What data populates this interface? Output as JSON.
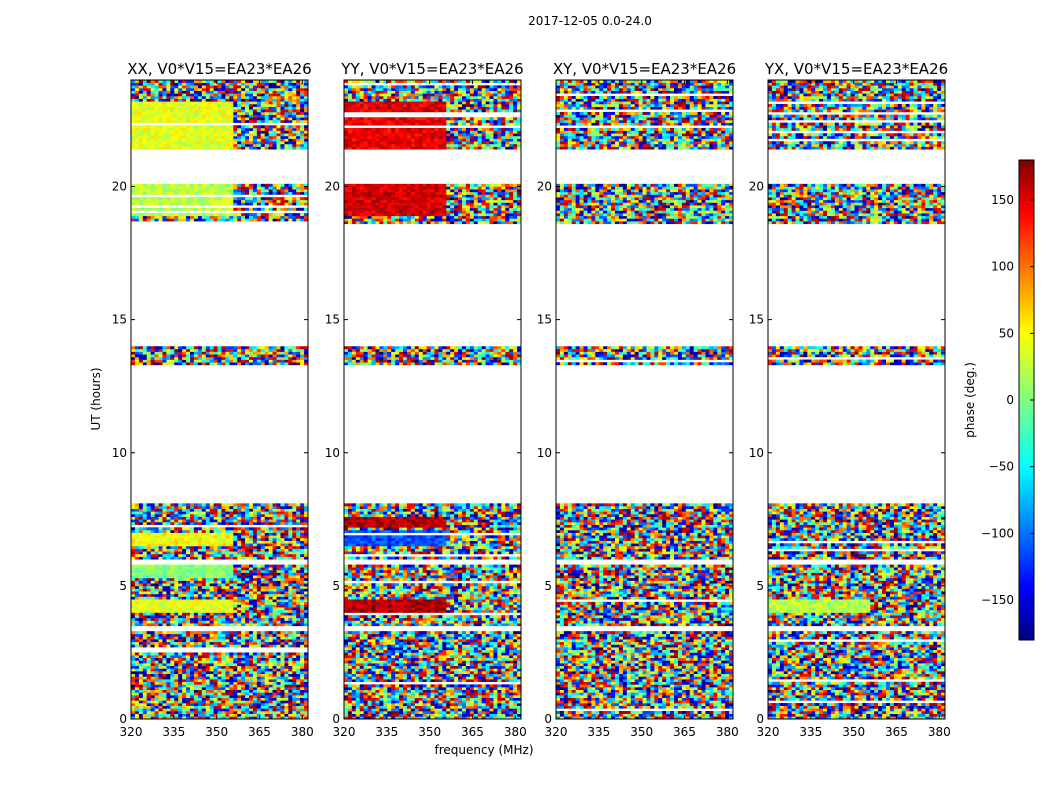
{
  "chart_data": {
    "type": "heatmap",
    "suptitle": "2017-12-05 0.0-24.0",
    "xlabel": "frequency (MHz)",
    "ylabel": "UT (hours)",
    "colorbar_label": "phase (deg.)",
    "xlim": [
      320,
      382
    ],
    "ylim": [
      0,
      24
    ],
    "xticks": [
      "320",
      "335",
      "350",
      "365",
      "380"
    ],
    "yticks": [
      "0",
      "5",
      "10",
      "15",
      "20"
    ],
    "colorbar_range": [
      -180,
      180
    ],
    "colorbar_ticks": [
      "150",
      "100",
      "50",
      "0",
      "−50",
      "−100",
      "−150"
    ],
    "colormap": "jet",
    "data_blocks_ut": [
      [
        0.0,
        3.3
      ],
      [
        3.5,
        5.8
      ],
      [
        6.0,
        8.1
      ],
      [
        13.3,
        14.0
      ],
      [
        18.6,
        20.1
      ],
      [
        21.4,
        24.0
      ]
    ],
    "panels": [
      {
        "title": "XX, V0*V15=EA23*EA26",
        "polarization": "XX"
      },
      {
        "title": "YY, V0*V15=EA23*EA26",
        "polarization": "YY"
      },
      {
        "title": "XY, V0*V15=EA23*EA26",
        "polarization": "XY"
      },
      {
        "title": "YX, V0*V15=EA23*EA26",
        "polarization": "YX"
      }
    ]
  }
}
